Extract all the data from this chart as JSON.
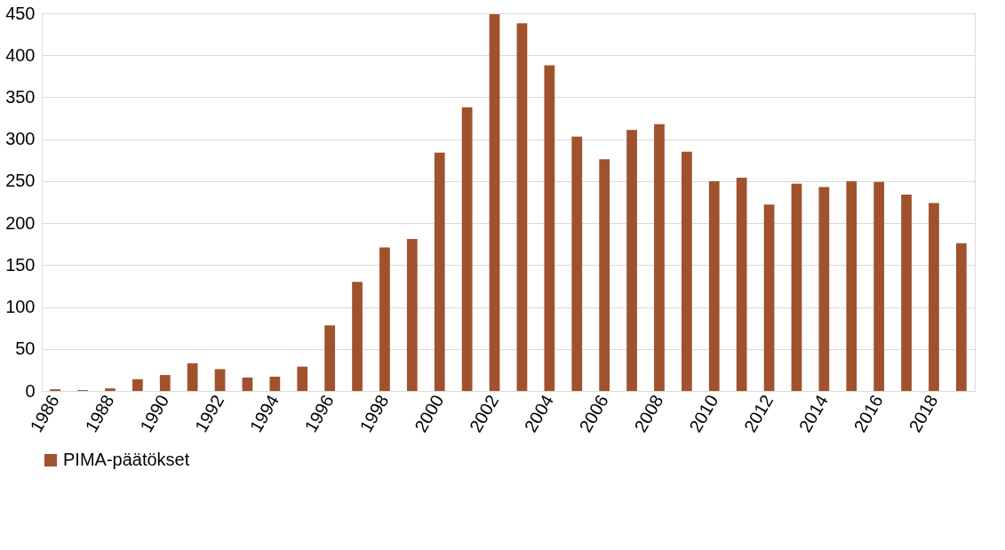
{
  "chart_data": {
    "type": "bar",
    "categories": [
      "1986",
      null,
      "1988",
      null,
      "1990",
      null,
      "1992",
      null,
      "1994",
      null,
      "1996",
      null,
      "1998",
      null,
      "2000",
      null,
      "2002",
      null,
      "2004",
      null,
      "2006",
      null,
      "2008",
      null,
      "2010",
      null,
      "2012",
      null,
      "2014",
      null,
      "2016",
      null,
      "2018",
      null
    ],
    "series": [
      {
        "name": "PIMA-päätökset",
        "color": "#a0522d",
        "values": [
          2,
          1,
          3,
          14,
          19,
          33,
          26,
          16,
          17,
          29,
          78,
          130,
          171,
          181,
          284,
          338,
          449,
          438,
          388,
          303,
          276,
          311,
          318,
          285,
          250,
          254,
          222,
          247,
          243,
          250,
          249,
          234,
          224,
          176
        ]
      }
    ],
    "ylim": [
      0,
      450
    ],
    "yticks": [
      0,
      50,
      100,
      150,
      200,
      250,
      300,
      350,
      400,
      450
    ],
    "grid": "y",
    "legend": "bottom"
  }
}
